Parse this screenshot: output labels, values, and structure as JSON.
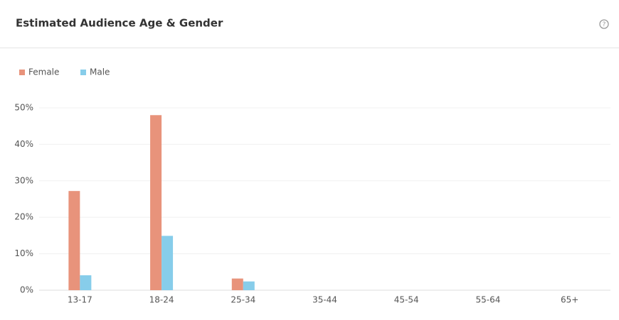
{
  "chart_data": {
    "type": "bar",
    "title": "Estimated Audience Age & Gender",
    "categories": [
      "13-17",
      "18-24",
      "25-34",
      "35-44",
      "45-54",
      "55-64",
      "65+"
    ],
    "series": [
      {
        "name": "Female",
        "color": "#e8937b",
        "values": [
          27.2,
          48,
          3.2,
          0,
          0,
          0,
          0
        ]
      },
      {
        "name": "Male",
        "color": "#87cdea",
        "values": [
          4.1,
          14.9,
          2.4,
          0,
          0,
          0,
          0
        ]
      }
    ],
    "ylim": [
      0,
      50
    ],
    "yticks": [
      {
        "value": 0,
        "label": "0%"
      },
      {
        "value": 10,
        "label": "10%"
      },
      {
        "value": 20,
        "label": "20%"
      },
      {
        "value": 30,
        "label": "30%"
      },
      {
        "value": 40,
        "label": "40%"
      },
      {
        "value": 50,
        "label": "50%"
      }
    ],
    "grid": true
  }
}
